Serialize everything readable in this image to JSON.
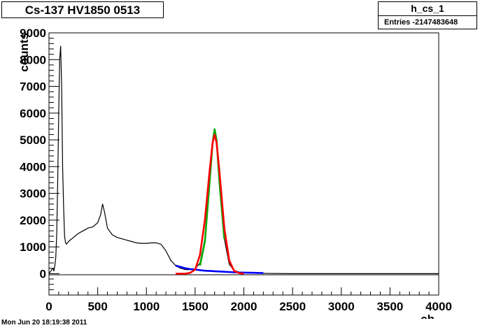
{
  "title": "Cs-137 HV1850 0513",
  "stats": {
    "name": "h_cs_1",
    "entries": "Entries  -2147483648"
  },
  "footer": "Mon Jun 20 18:19:38 2011",
  "chart_data": {
    "type": "line",
    "xlabel": "ch",
    "ylabel": "counts",
    "xlim": [
      0,
      4000
    ],
    "ylim": [
      -800,
      9000
    ],
    "x_ticks": [
      0,
      500,
      1000,
      1500,
      2000,
      2500,
      3000,
      3500,
      4000
    ],
    "y_ticks": [
      0,
      1000,
      2000,
      3000,
      4000,
      5000,
      6000,
      7000,
      8000,
      9000
    ],
    "grid": false,
    "series": [
      {
        "color": "#000000",
        "x": [
          0,
          40,
          50,
          60,
          70,
          80,
          90,
          100,
          110,
          120,
          130,
          140,
          150,
          160,
          170,
          180,
          200,
          250,
          300,
          350,
          400,
          450,
          500,
          530,
          550,
          570,
          600,
          650,
          700,
          750,
          800,
          850,
          900,
          950,
          1000,
          1050,
          1100,
          1150,
          1200,
          1250,
          1300,
          1350,
          1400,
          1450,
          1500,
          1550,
          1600,
          1650,
          1680,
          1700,
          1720,
          1750,
          1800,
          1850,
          1900,
          1950,
          2000,
          2100,
          2200,
          2500,
          3000,
          3500,
          4000
        ],
        "y": [
          0,
          200,
          100,
          300,
          600,
          1500,
          3500,
          6000,
          8000,
          8500,
          7000,
          4000,
          2500,
          1400,
          1150,
          1100,
          1200,
          1350,
          1500,
          1600,
          1700,
          1750,
          1900,
          2200,
          2600,
          2300,
          1700,
          1450,
          1350,
          1300,
          1250,
          1200,
          1150,
          1130,
          1130,
          1150,
          1150,
          1100,
          850,
          500,
          300,
          200,
          150,
          150,
          180,
          400,
          1300,
          3500,
          4800,
          5400,
          5000,
          3300,
          1300,
          350,
          120,
          60,
          40,
          20,
          10,
          0,
          0,
          0,
          0
        ]
      },
      {
        "color": "#00aa00",
        "x": [
          1550,
          1600,
          1650,
          1680,
          1700,
          1720,
          1750,
          1800
        ],
        "y": [
          300,
          1200,
          3500,
          4900,
          5400,
          5000,
          3400,
          1300
        ]
      },
      {
        "color": "#0000ff",
        "x": [
          1300,
          1350,
          1400,
          1450,
          1500,
          1550,
          1600,
          1700,
          1800,
          1900,
          2000,
          2100,
          2200
        ],
        "y": [
          300,
          250,
          200,
          170,
          150,
          130,
          110,
          90,
          70,
          50,
          40,
          30,
          20
        ]
      },
      {
        "color": "#ff0000",
        "x": [
          1300,
          1400,
          1450,
          1500,
          1550,
          1600,
          1650,
          1680,
          1700,
          1720,
          1750,
          1800,
          1850,
          1900,
          1950,
          2000
        ],
        "y": [
          0,
          0,
          30,
          150,
          700,
          2000,
          3900,
          4900,
          5200,
          4900,
          3800,
          1700,
          500,
          100,
          20,
          0
        ]
      }
    ]
  }
}
